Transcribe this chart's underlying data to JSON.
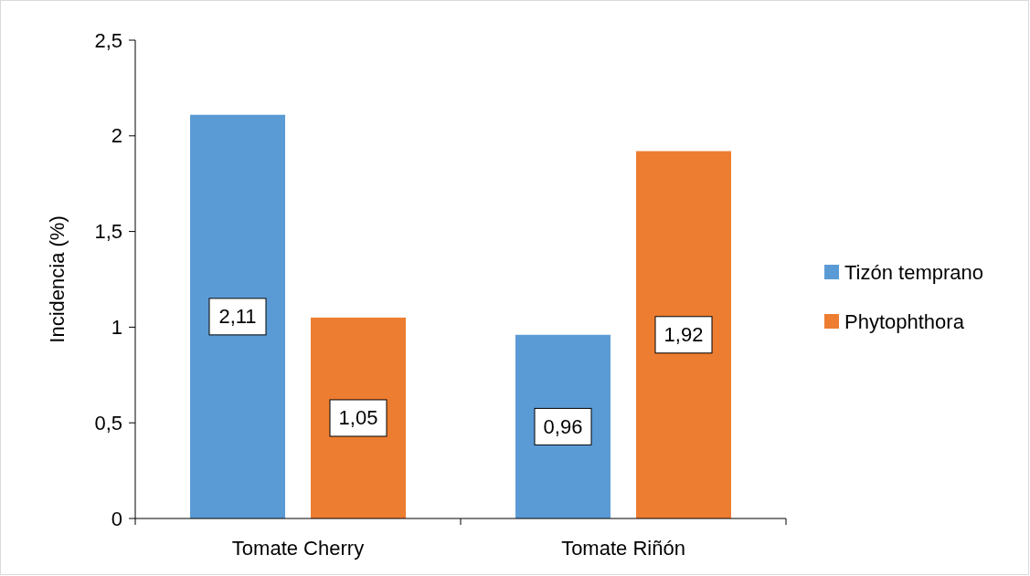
{
  "chart_data": {
    "type": "bar",
    "ylabel": "Incidencia (%)",
    "categories": [
      "Tomate Cherry",
      "Tomate Riñón"
    ],
    "series": [
      {
        "name": "Tizón temprano",
        "color": "#5b9bd5",
        "values": [
          2.11,
          0.96
        ],
        "value_labels": [
          "2,11",
          "0,96"
        ]
      },
      {
        "name": "Phytophthora",
        "color": "#ed7d31",
        "values": [
          1.05,
          1.92
        ],
        "value_labels": [
          "1,05",
          "1,92"
        ]
      }
    ],
    "ylim": [
      0,
      2.5
    ],
    "yticks": [
      0,
      {
        "value": 0.5,
        "label": "0,5"
      },
      1,
      {
        "value": 1.5,
        "label": "1,5"
      },
      2,
      {
        "value": 2.5,
        "label": "2,5"
      }
    ],
    "grid": false,
    "legend": "right"
  }
}
